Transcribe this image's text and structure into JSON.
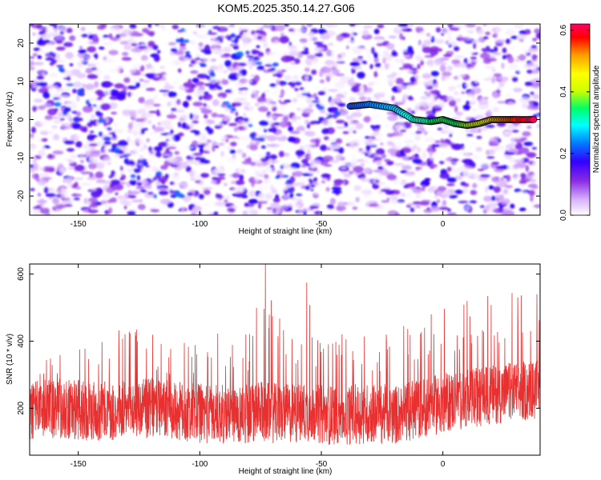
{
  "figure_title": "KOM5.2025.350.14.27.G06",
  "chart_data": [
    {
      "type": "heatmap",
      "xlabel": "Height of straight line (km)",
      "ylabel": "Frequency (Hz)",
      "xlim": [
        -170,
        40
      ],
      "ylim": [
        -25,
        25
      ],
      "xticks": [
        -150,
        -100,
        -50,
        0
      ],
      "yticks": [
        -20,
        -10,
        0,
        10,
        20
      ],
      "colorbar": {
        "label": "Normalized spectral amplitude",
        "range": [
          0.0,
          0.62
        ],
        "ticks": [
          0.0,
          0.2,
          0.4,
          0.6
        ],
        "tick_labels": [
          "0.0",
          "0.2",
          "0.4",
          "0.6"
        ],
        "colormap": [
          "#ffffff",
          "#d9b3ff",
          "#8a2be2",
          "#3300ff",
          "#0080ff",
          "#00ffff",
          "#00ff66",
          "#ccff00",
          "#ffff00",
          "#ff9900",
          "#ff0000",
          "#ff0066"
        ]
      },
      "ridge": {
        "description": "bright narrow spectral line near 0 Hz",
        "x": [
          -38,
          -30,
          -20,
          -12,
          -5,
          0,
          5,
          10,
          15,
          20,
          25,
          30,
          38
        ],
        "y": [
          3.5,
          4.0,
          3.0,
          0.0,
          -0.5,
          0.0,
          -1.0,
          -1.5,
          -1.0,
          0.0,
          0.0,
          0.0,
          0.0
        ],
        "amplitude": [
          0.2,
          0.22,
          0.25,
          0.3,
          0.32,
          0.35,
          0.33,
          0.38,
          0.42,
          0.48,
          0.52,
          0.55,
          0.62
        ]
      },
      "background_noise_amplitude": [
        0.0,
        0.18
      ]
    },
    {
      "type": "line",
      "xlabel": "Height of straight line (km)",
      "ylabel": "SNR (10 * v/v)",
      "xlim": [
        -170,
        40
      ],
      "ylim": [
        60,
        630
      ],
      "xticks": [
        -150,
        -100,
        -50,
        0
      ],
      "yticks": [
        200,
        400,
        600
      ],
      "color": "#e83030",
      "series": [
        {
          "name": "SNR",
          "x": [
            -170,
            -160,
            -150,
            -140,
            -130,
            -120,
            -110,
            -100,
            -90,
            -80,
            -73,
            -70,
            -60,
            -56,
            -50,
            -40,
            -30,
            -20,
            -10,
            0,
            10,
            20,
            30,
            40
          ],
          "baseline": [
            190,
            200,
            195,
            190,
            195,
            200,
            190,
            185,
            180,
            185,
            190,
            185,
            185,
            190,
            180,
            180,
            185,
            180,
            200,
            215,
            230,
            240,
            250,
            255
          ],
          "peaks": [
            340,
            360,
            390,
            420,
            450,
            430,
            400,
            410,
            450,
            430,
            630,
            500,
            440,
            575,
            400,
            430,
            420,
            430,
            470,
            500,
            520,
            540,
            560,
            550
          ]
        }
      ]
    }
  ]
}
